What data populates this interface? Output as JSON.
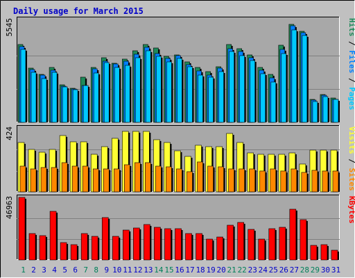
{
  "colors": {
    "background": "#C0C0C0",
    "panel": "#A8A8A8",
    "title": "#0000C8",
    "hits": "#1F8A5A",
    "files": "#0080FF",
    "pages": "#00C8FF",
    "visits": "#FFFF33",
    "sites": "#FF8800",
    "kbytes": "#FF0000",
    "weekend_day": "#00805A",
    "weekday": "#0000C8"
  },
  "chart_data": {
    "type": "bar",
    "title": "Daily usage for March 2015",
    "x": [
      1,
      2,
      3,
      4,
      5,
      6,
      7,
      8,
      9,
      10,
      11,
      12,
      13,
      14,
      15,
      16,
      17,
      18,
      19,
      20,
      21,
      22,
      23,
      24,
      25,
      26,
      27,
      28,
      29,
      30,
      31
    ],
    "weekend_days": [
      1,
      7,
      8,
      14,
      15,
      21,
      22,
      28,
      29
    ],
    "panels": [
      {
        "name": "requests",
        "ymax_label": "5545",
        "ylim": [
          0,
          5545
        ],
        "legend": [
          "Pages",
          "Files",
          "Hits"
        ],
        "series": [
          {
            "name": "Hits",
            "values": [
              4250,
              2950,
              2640,
              2990,
              2060,
              1880,
              2460,
              3000,
              3530,
              3220,
              3470,
              3900,
              4260,
              4070,
              3620,
              3700,
              3290,
              3000,
              2770,
              3050,
              4260,
              4020,
              3700,
              3000,
              2640,
              4200,
              5370,
              4980,
              1250,
              1520,
              1330
            ]
          },
          {
            "name": "Files",
            "values": [
              4140,
              2900,
              2570,
              2850,
              1980,
              1830,
              2000,
              2920,
              3340,
              3180,
              3330,
              3710,
              4100,
              3770,
              3500,
              3650,
              3170,
              2800,
              2600,
              2980,
              4040,
              3880,
              3540,
              2840,
              2430,
              4000,
              5270,
              4900,
              1230,
              1490,
              1270
            ]
          },
          {
            "name": "Pages",
            "values": [
              3980,
              2750,
              2400,
              2750,
              1930,
              1790,
              2000,
              2690,
              3270,
              3000,
              3110,
              3520,
              3920,
              3610,
              3300,
              3480,
              3030,
              2570,
              2460,
              2780,
              3890,
              3640,
              3400,
              2650,
              2220,
              3750,
              5050,
              4750,
              1140,
              1420,
              1250
            ]
          }
        ]
      },
      {
        "name": "visitors",
        "ymax_label": "424",
        "ylim": [
          0,
          424
        ],
        "legend": [
          "Sites",
          "Visits"
        ],
        "series": [
          {
            "name": "Visits",
            "values": [
              325,
              282,
              263,
              282,
              372,
              333,
              333,
              247,
              298,
              353,
              398,
              398,
              398,
              343,
              325,
              272,
              233,
              306,
              298,
              298,
              386,
              326,
              259,
              250,
              250,
              250,
              259,
              182,
              278,
              278,
              278
            ]
          },
          {
            "name": "Sites",
            "values": [
              168,
              150,
              160,
              160,
              195,
              170,
              170,
              150,
              150,
              150,
              180,
              195,
              195,
              170,
              165,
              152,
              135,
              196,
              170,
              167,
              152,
              150,
              150,
              138,
              150,
              138,
              150,
              129,
              142,
              138,
              138
            ]
          }
        ]
      },
      {
        "name": "traffic",
        "ymax_label": "46963",
        "ylim": [
          0,
          46963
        ],
        "legend": [
          "KBytes"
        ],
        "series": [
          {
            "name": "KBytes",
            "values": [
              46963,
              20000,
              18260,
              36520,
              13040,
              11300,
              19820,
              17740,
              32000,
              17910,
              22480,
              23820,
              26430,
              24690,
              23400,
              23400,
              19640,
              20000,
              15860,
              17380,
              26000,
              28270,
              23120,
              15510,
              23380,
              24400,
              38000,
              30000,
              11000,
              11650,
              7450
            ]
          }
        ]
      }
    ]
  }
}
